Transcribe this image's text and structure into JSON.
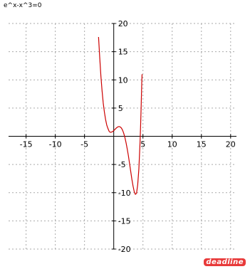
{
  "chart_data": {
    "type": "line",
    "title": "e^x-x^3=0",
    "xlabel": "",
    "ylabel": "",
    "xlim": [
      -18,
      21
    ],
    "ylim": [
      -20,
      20
    ],
    "grid": true,
    "x_ticks": [
      -15,
      -10,
      -5,
      5,
      10,
      15,
      20
    ],
    "y_ticks": [
      20,
      15,
      10,
      5,
      -5,
      -10,
      -15,
      -20
    ],
    "series": [
      {
        "color": "#cc0000",
        "points": [
          [
            -2.6,
            17.6
          ],
          [
            -2.4,
            14.0
          ],
          [
            -2.2,
            10.7
          ],
          [
            -2.0,
            8.1
          ],
          [
            -1.8,
            5.9
          ],
          [
            -1.6,
            4.3
          ],
          [
            -1.4,
            3.0
          ],
          [
            -1.2,
            2.0
          ],
          [
            -1.0,
            1.4
          ],
          [
            -0.8,
            0.9
          ],
          [
            -0.6,
            0.7
          ],
          [
            -0.4,
            0.73
          ],
          [
            -0.2,
            0.83
          ],
          [
            0.0,
            1.0
          ],
          [
            0.3,
            1.32
          ],
          [
            0.5,
            1.52
          ],
          [
            0.7,
            1.67
          ],
          [
            0.9,
            1.73
          ],
          [
            1.1,
            1.67
          ],
          [
            1.3,
            1.47
          ],
          [
            1.5,
            1.11
          ],
          [
            1.7,
            0.56
          ],
          [
            1.9,
            -0.17
          ],
          [
            2.1,
            -1.1
          ],
          [
            2.3,
            -2.2
          ],
          [
            2.5,
            -3.4
          ],
          [
            2.7,
            -4.8
          ],
          [
            2.9,
            -6.2
          ],
          [
            3.1,
            -7.6
          ],
          [
            3.3,
            -8.8
          ],
          [
            3.5,
            -9.8
          ],
          [
            3.7,
            -10.3
          ],
          [
            3.9,
            -10.1
          ],
          [
            4.1,
            -8.6
          ],
          [
            4.3,
            -5.8
          ],
          [
            4.5,
            -1.1
          ],
          [
            4.6,
            2.0
          ],
          [
            4.7,
            5.6
          ],
          [
            4.8,
            9.8
          ],
          [
            4.85,
            11.0
          ]
        ]
      }
    ]
  },
  "watermark": "deadline"
}
